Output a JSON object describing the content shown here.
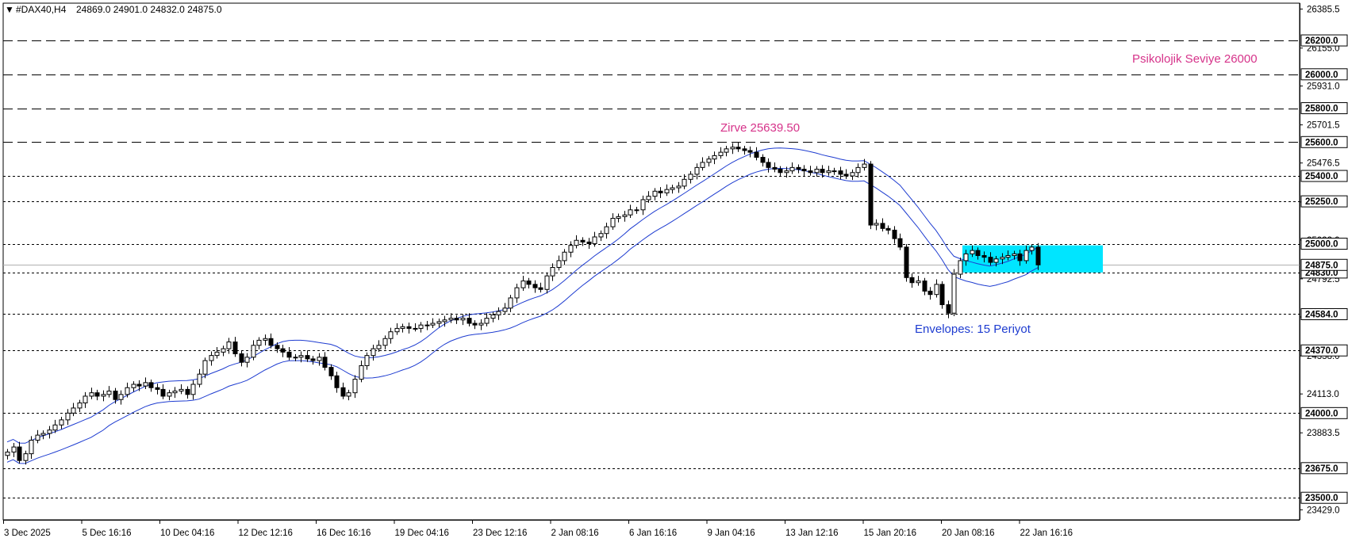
{
  "chart_data": {
    "type": "candlestick",
    "symbol_header": "#DAX40,H4",
    "ohlc_header": "24869.0 24901.0 24832.0 24875.0",
    "y_range": [
      23370,
      26420
    ],
    "x_ticks": [
      "3 Dec 2025",
      "5 Dec 16:16",
      "10 Dec 04:16",
      "12 Dec 12:16",
      "16 Dec 16:16",
      "19 Dec 04:16",
      "23 Dec 12:16",
      "2 Jan 08:16",
      "6 Jan 16:16",
      "9 Jan 04:16",
      "13 Jan 12:16",
      "15 Jan 20:16",
      "20 Jan 08:16",
      "22 Jan 16:16"
    ],
    "y_ticks": [
      "26385.5",
      "26155.0",
      "25931.0",
      "25701.5",
      "25476.5",
      "25246.5",
      "25022.0",
      "24792.5",
      "24567.5",
      "24338.0",
      "24113.0",
      "23883.5",
      "23429.0"
    ],
    "levels": [
      {
        "label": "26200.0",
        "value": 26200,
        "style": "dashed-long"
      },
      {
        "label": "26000.0",
        "value": 26000,
        "style": "dashed-long"
      },
      {
        "label": "25800.0",
        "value": 25800,
        "style": "dashed-long"
      },
      {
        "label": "25600.0",
        "value": 25600,
        "style": "dashed-long"
      },
      {
        "label": "25400.0",
        "value": 25400,
        "style": "dotted"
      },
      {
        "label": "25250.0",
        "value": 25250,
        "style": "dotted"
      },
      {
        "label": "25000.0",
        "value": 25000,
        "style": "dotted"
      },
      {
        "label": "24830.0",
        "value": 24830,
        "style": "dotted"
      },
      {
        "label": "24584.0",
        "value": 24584,
        "style": "dotted"
      },
      {
        "label": "24370.0",
        "value": 24370,
        "style": "dotted"
      },
      {
        "label": "24000.0",
        "value": 24000,
        "style": "dotted"
      },
      {
        "label": "23675.0",
        "value": 23675,
        "style": "dotted"
      },
      {
        "label": "23500.0",
        "value": 23500,
        "style": "dotted"
      }
    ],
    "current_price": {
      "label": "24875.0",
      "value": 24875
    },
    "zone": {
      "from": 24830,
      "to": 24990,
      "color": "#00e5ff"
    },
    "annotations": [
      {
        "text": "Psikolojik Seviye 26000",
        "color": "#d6338a"
      },
      {
        "text": "Zirve 25639.50",
        "color": "#d6338a"
      },
      {
        "text": "Envelopes: 15 Periyot",
        "color": "#1e3cd0"
      }
    ],
    "closes": [
      23770,
      23800,
      23720,
      23760,
      23840,
      23870,
      23880,
      23900,
      23930,
      23960,
      24000,
      24030,
      24060,
      24100,
      24120,
      24100,
      24110,
      24130,
      24080,
      24110,
      24150,
      24170,
      24160,
      24180,
      24150,
      24140,
      24100,
      24120,
      24130,
      24140,
      24110,
      24170,
      24230,
      24310,
      24340,
      24360,
      24380,
      24420,
      24350,
      24300,
      24330,
      24400,
      24430,
      24440,
      24400,
      24380,
      24360,
      24330,
      24330,
      24340,
      24320,
      24310,
      24330,
      24270,
      24220,
      24150,
      24100,
      24120,
      24200,
      24280,
      24340,
      24380,
      24400,
      24440,
      24480,
      24500,
      24510,
      24500,
      24500,
      24520,
      24520,
      24530,
      24540,
      24550,
      24560,
      24550,
      24560,
      24530,
      24520,
      24530,
      24560,
      24580,
      24600,
      24620,
      24680,
      24740,
      24780,
      24760,
      24740,
      24730,
      24810,
      24860,
      24900,
      24950,
      24990,
      25020,
      25010,
      25000,
      25040,
      25060,
      25100,
      25150,
      25160,
      25170,
      25200,
      25200,
      25260,
      25280,
      25310,
      25300,
      25320,
      25330,
      25340,
      25380,
      25410,
      25450,
      25480,
      25500,
      25520,
      25540,
      25560,
      25570,
      25560,
      25550,
      25540,
      25510,
      25480,
      25450,
      25440,
      25420,
      25430,
      25450,
      25440,
      25430,
      25420,
      25440,
      25420,
      25430,
      25430,
      25410,
      25400,
      25420,
      25450,
      25470,
      25110,
      25120,
      25090,
      25080,
      25030,
      24980,
      24800,
      24770,
      24780,
      24720,
      24700,
      24760,
      24640,
      24590,
      24820,
      24900,
      24940,
      24960,
      24930,
      24920,
      24890,
      24910,
      24920,
      24930,
      24940,
      24900,
      24960,
      24980,
      24875
    ],
    "envelope_period": 15
  }
}
